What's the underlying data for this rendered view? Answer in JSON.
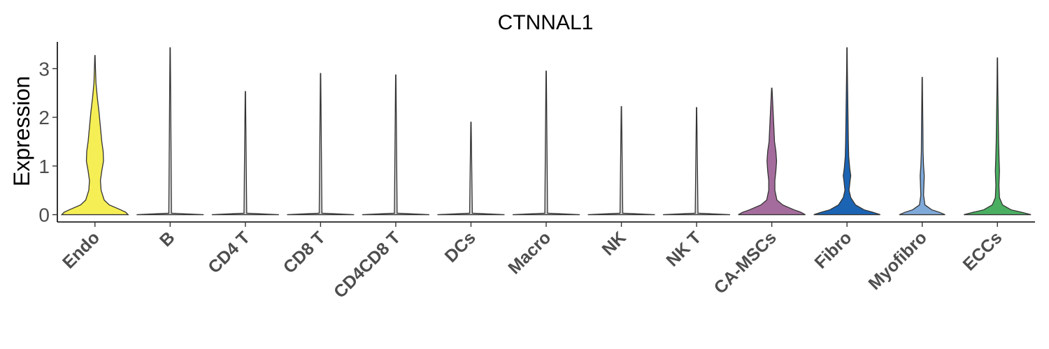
{
  "chart_data": {
    "type": "violin",
    "title": "CTNNAL1",
    "xlabel": "",
    "ylabel": "Expression",
    "ylim": [
      -0.15,
      3.55
    ],
    "yticks": [
      0,
      1,
      2,
      3
    ],
    "grid": false,
    "legend": "none",
    "categories": [
      "Endo",
      "B",
      "CD4 T",
      "CD8 T",
      "CD4CD8 T",
      "DCs",
      "Macro",
      "NK",
      "NK T",
      "CA-MSCs",
      "Fibro",
      "Myofibro",
      "ECCs"
    ],
    "colors": [
      "#F5EE55",
      "#D3D3D3",
      "#D3D3D3",
      "#D3D3D3",
      "#D3D3D3",
      "#D3D3D3",
      "#D3D3D3",
      "#D3D3D3",
      "#D3D3D3",
      "#A46C9C",
      "#1B64B4",
      "#7FA9D9",
      "#4BAF62"
    ],
    "max_expression": [
      3.27,
      3.43,
      2.53,
      2.9,
      2.87,
      1.9,
      2.95,
      2.22,
      2.2,
      2.6,
      3.43,
      2.82,
      3.22
    ],
    "density_profiles": [
      [
        [
          0,
          0.97
        ],
        [
          0.05,
          0.9
        ],
        [
          0.1,
          0.75
        ],
        [
          0.2,
          0.42
        ],
        [
          0.3,
          0.27
        ],
        [
          0.5,
          0.18
        ],
        [
          0.7,
          0.16
        ],
        [
          0.9,
          0.2
        ],
        [
          1.1,
          0.25
        ],
        [
          1.3,
          0.24
        ],
        [
          1.5,
          0.2
        ],
        [
          1.8,
          0.16
        ],
        [
          2.1,
          0.12
        ],
        [
          2.4,
          0.07
        ],
        [
          2.7,
          0.03
        ],
        [
          3.0,
          0.015
        ],
        [
          3.27,
          0.005
        ]
      ],
      [
        [
          0,
          0.98
        ],
        [
          0.03,
          0.04
        ],
        [
          3.43,
          0.005
        ]
      ],
      [
        [
          0,
          0.98
        ],
        [
          0.03,
          0.04
        ],
        [
          2.53,
          0.005
        ]
      ],
      [
        [
          0,
          0.98
        ],
        [
          0.03,
          0.04
        ],
        [
          2.9,
          0.005
        ]
      ],
      [
        [
          0,
          0.98
        ],
        [
          0.03,
          0.04
        ],
        [
          2.87,
          0.005
        ]
      ],
      [
        [
          0,
          0.98
        ],
        [
          0.03,
          0.04
        ],
        [
          1.9,
          0.005
        ]
      ],
      [
        [
          0,
          0.98
        ],
        [
          0.03,
          0.04
        ],
        [
          2.95,
          0.005
        ]
      ],
      [
        [
          0,
          0.98
        ],
        [
          0.03,
          0.04
        ],
        [
          2.22,
          0.005
        ]
      ],
      [
        [
          0,
          0.98
        ],
        [
          0.03,
          0.04
        ],
        [
          2.2,
          0.005
        ]
      ],
      [
        [
          0,
          0.98
        ],
        [
          0.05,
          0.85
        ],
        [
          0.1,
          0.65
        ],
        [
          0.2,
          0.32
        ],
        [
          0.3,
          0.15
        ],
        [
          0.5,
          0.09
        ],
        [
          0.7,
          0.09
        ],
        [
          0.9,
          0.12
        ],
        [
          1.1,
          0.14
        ],
        [
          1.3,
          0.12
        ],
        [
          1.5,
          0.08
        ],
        [
          1.8,
          0.06
        ],
        [
          2.1,
          0.04
        ],
        [
          2.4,
          0.02
        ],
        [
          2.6,
          0.006
        ]
      ],
      [
        [
          0,
          0.97
        ],
        [
          0.05,
          0.75
        ],
        [
          0.1,
          0.5
        ],
        [
          0.2,
          0.25
        ],
        [
          0.35,
          0.11
        ],
        [
          0.5,
          0.06
        ],
        [
          0.7,
          0.09
        ],
        [
          0.8,
          0.11
        ],
        [
          0.95,
          0.08
        ],
        [
          1.2,
          0.05
        ],
        [
          1.5,
          0.04
        ],
        [
          2.0,
          0.03
        ],
        [
          2.5,
          0.02
        ],
        [
          3.0,
          0.01
        ],
        [
          3.43,
          0.005
        ]
      ],
      [
        [
          0,
          0.67
        ],
        [
          0.05,
          0.5
        ],
        [
          0.1,
          0.28
        ],
        [
          0.2,
          0.08
        ],
        [
          0.4,
          0.04
        ],
        [
          0.6,
          0.05
        ],
        [
          0.8,
          0.06
        ],
        [
          1.0,
          0.04
        ],
        [
          1.3,
          0.025
        ],
        [
          1.8,
          0.02
        ],
        [
          2.3,
          0.012
        ],
        [
          2.82,
          0.005
        ]
      ],
      [
        [
          0,
          0.98
        ],
        [
          0.05,
          0.7
        ],
        [
          0.1,
          0.4
        ],
        [
          0.2,
          0.15
        ],
        [
          0.35,
          0.06
        ],
        [
          0.6,
          0.045
        ],
        [
          0.9,
          0.06
        ],
        [
          1.1,
          0.05
        ],
        [
          1.5,
          0.035
        ],
        [
          2.0,
          0.025
        ],
        [
          2.6,
          0.012
        ],
        [
          3.22,
          0.005
        ]
      ]
    ]
  }
}
